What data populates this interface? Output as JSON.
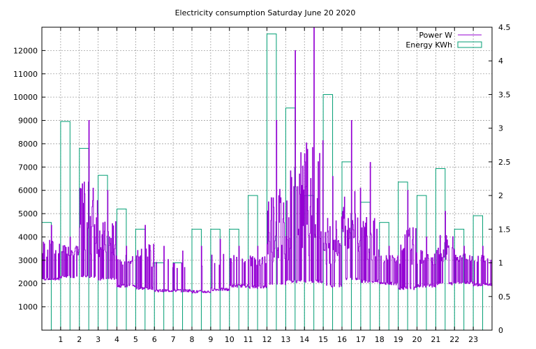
{
  "chart_data": {
    "type": "bar",
    "title": "Electricity consumption Saturday June 20 2020",
    "x_ticks": [
      "1",
      "2",
      "3",
      "4",
      "5",
      "6",
      "7",
      "8",
      "9",
      "10",
      "11",
      "12",
      "13",
      "14",
      "15",
      "16",
      "17",
      "18",
      "19",
      "20",
      "21",
      "22",
      "23"
    ],
    "xlim": [
      0,
      24
    ],
    "ylim_left": [
      0,
      13000
    ],
    "ylim_right": [
      0,
      4.5
    ],
    "y_left_ticks": [
      1000,
      2000,
      3000,
      4000,
      5000,
      6000,
      7000,
      8000,
      9000,
      10000,
      11000,
      12000
    ],
    "y_right_ticks": [
      "0",
      "0.5",
      "1",
      "1.5",
      "2",
      "2.5",
      "3",
      "3.5",
      "4",
      "4.5"
    ],
    "grid": true,
    "legend_position": "top-right",
    "colors": {
      "power": "#9400d3",
      "energy": "#009e73"
    },
    "series": [
      {
        "name": "Energy KWh",
        "axis": "right",
        "style": "boxes",
        "x": [
          0,
          1,
          2,
          3,
          4,
          5,
          6,
          7,
          8,
          9,
          10,
          11,
          12,
          13,
          14,
          15,
          16,
          17,
          18,
          19,
          20,
          21,
          22,
          23
        ],
        "values": [
          1.6,
          3.1,
          2.7,
          2.3,
          1.8,
          1.5,
          1.0,
          1.0,
          1.5,
          1.5,
          1.5,
          2.0,
          4.4,
          3.3,
          2.0,
          3.5,
          2.5,
          1.9,
          1.6,
          2.2,
          2.0,
          2.4,
          1.5,
          1.7
        ]
      },
      {
        "name": "Power W",
        "axis": "left",
        "style": "line",
        "hours": [
          0,
          1,
          2,
          3,
          4,
          5,
          6,
          7,
          8,
          9,
          10,
          11,
          12,
          13,
          14,
          15,
          16,
          17,
          18,
          19,
          20,
          21,
          22,
          23
        ],
        "base_w": [
          2200,
          2300,
          2300,
          2200,
          1900,
          1800,
          1700,
          1700,
          1650,
          1750,
          1900,
          1850,
          2000,
          2100,
          2100,
          1900,
          2200,
          2100,
          2000,
          1800,
          1900,
          2000,
          2050,
          1950
        ],
        "peak_w": [
          4500,
          4000,
          9000,
          6000,
          3600,
          4500,
          3600,
          3400,
          3600,
          3900,
          3600,
          3600,
          9000,
          12000,
          13000,
          6600,
          9000,
          7200,
          3600,
          6000,
          4000,
          5100,
          3600,
          3600
        ],
        "active_fraction": [
          0.3,
          0.5,
          0.65,
          0.6,
          0.35,
          0.3,
          0.1,
          0.1,
          0.05,
          0.1,
          0.15,
          0.4,
          0.85,
          0.7,
          0.45,
          0.75,
          0.6,
          0.5,
          0.4,
          0.45,
          0.5,
          0.55,
          0.3,
          0.4
        ],
        "end_w": 2000
      }
    ]
  }
}
